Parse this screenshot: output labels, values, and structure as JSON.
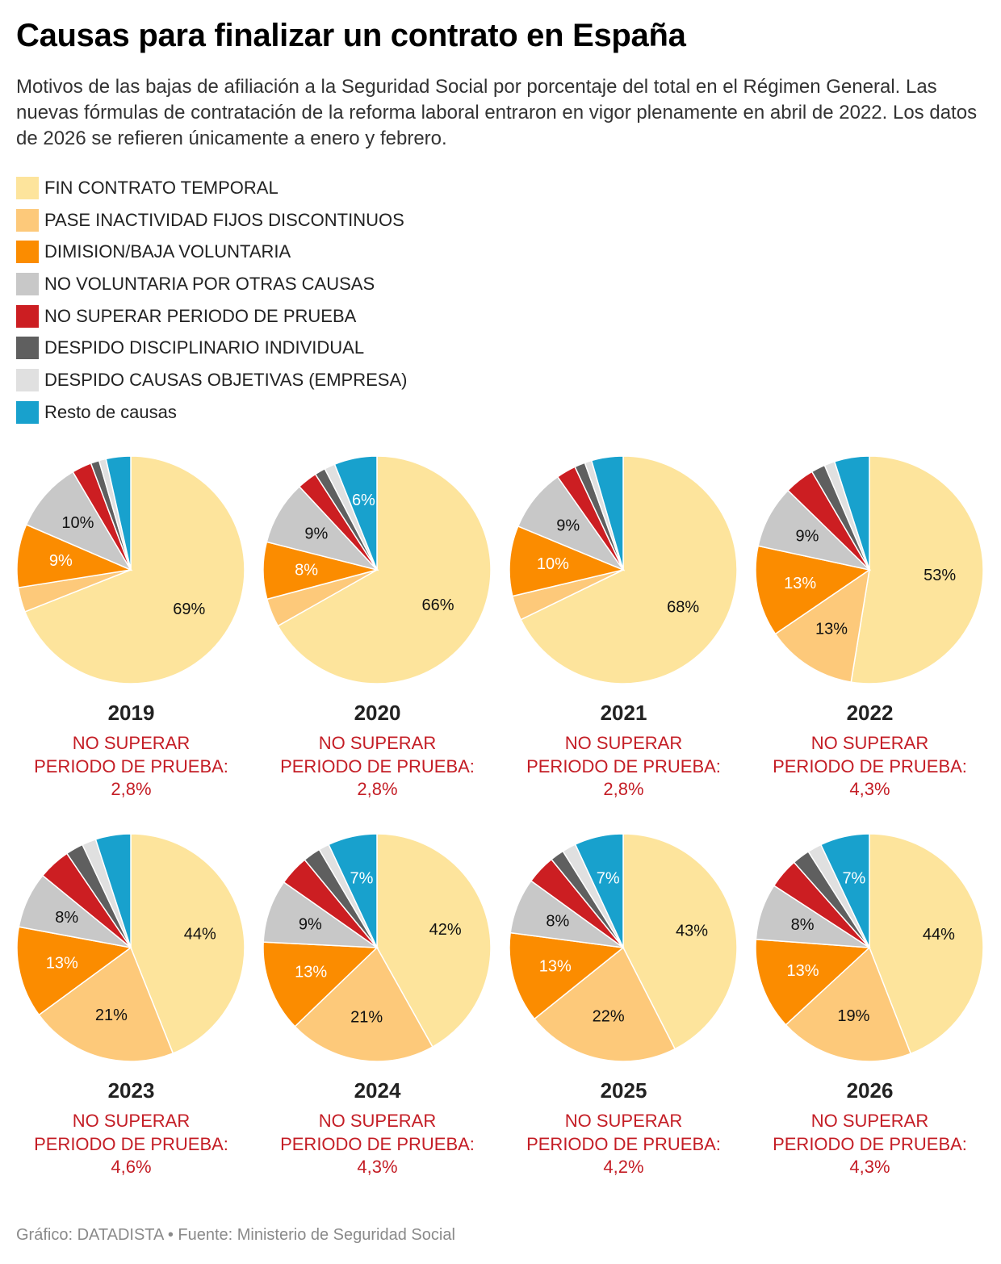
{
  "title": "Causas para finalizar un contrato en España",
  "subtitle": "Motivos de las bajas de afiliación a la Seguridad Social por porcentaje del total en el Régimen General. Las nuevas fórmulas de contratación de la reforma laboral entraron en vigor plenamente en abril de 2022. Los datos de 2026 se refieren únicamente a enero y febrero.",
  "legend": [
    {
      "label": "FIN CONTRATO TEMPORAL",
      "color": "#fde49c"
    },
    {
      "label": "PASE INACTIVIDAD FIJOS DISCONTINUOS",
      "color": "#fdc97a"
    },
    {
      "label": "DIMISION/BAJA VOLUNTARIA",
      "color": "#fb8c00"
    },
    {
      "label": "NO VOLUNTARIA POR OTRAS CAUSAS",
      "color": "#c8c8c8"
    },
    {
      "label": "NO SUPERAR PERIODO DE PRUEBA",
      "color": "#cc1e22"
    },
    {
      "label": "DESPIDO DISCIPLINARIO INDIVIDUAL",
      "color": "#5f5f5f"
    },
    {
      "label": "DESPIDO CAUSAS OBJETIVAS (EMPRESA)",
      "color": "#e0e0e0"
    },
    {
      "label": "Resto de causas",
      "color": "#18a1cd"
    }
  ],
  "note_lines": [
    "NO SUPERAR",
    "PERIODO DE PRUEBA:"
  ],
  "footer": "Gráfico: DATADISTA • Fuente: Ministerio de Seguridad Social",
  "chart_data": [
    {
      "type": "pie",
      "year": "2019",
      "values": [
        69,
        3.5,
        9,
        10,
        2.8,
        1.2,
        1,
        3.5
      ],
      "labels": [
        "69%",
        "",
        "9%",
        "10%",
        "",
        "",
        "",
        ""
      ],
      "note_value": "2,8%"
    },
    {
      "type": "pie",
      "year": "2020",
      "values": [
        66,
        4,
        8,
        9,
        2.8,
        1.5,
        1.5,
        6
      ],
      "labels": [
        "66%",
        "",
        "8%",
        "9%",
        "",
        "",
        "",
        "6%"
      ],
      "note_value": "2,8%"
    },
    {
      "type": "pie",
      "year": "2021",
      "values": [
        68,
        3.5,
        10,
        9,
        2.8,
        1.5,
        1,
        4.5
      ],
      "labels": [
        "68%",
        "",
        "10%",
        "9%",
        "",
        "",
        "",
        ""
      ],
      "note_value": "2,8%"
    },
    {
      "type": "pie",
      "year": "2022",
      "values": [
        53,
        13,
        13,
        9,
        4.3,
        2,
        1.5,
        5
      ],
      "labels": [
        "53%",
        "13%",
        "13%",
        "9%",
        "",
        "",
        "",
        ""
      ],
      "note_value": "4,3%"
    },
    {
      "type": "pie",
      "year": "2023",
      "values": [
        44,
        21,
        13,
        8,
        4.6,
        2.5,
        2,
        5
      ],
      "labels": [
        "44%",
        "21%",
        "13%",
        "8%",
        "",
        "",
        "",
        ""
      ],
      "note_value": "4,6%"
    },
    {
      "type": "pie",
      "year": "2024",
      "values": [
        42,
        21,
        13,
        9,
        4.3,
        2.5,
        1.5,
        7
      ],
      "labels": [
        "42%",
        "21%",
        "13%",
        "9%",
        "",
        "",
        "",
        "7%"
      ],
      "note_value": "4,3%"
    },
    {
      "type": "pie",
      "year": "2025",
      "values": [
        43,
        22,
        13,
        8,
        4.2,
        2,
        2,
        7
      ],
      "labels": [
        "43%",
        "22%",
        "13%",
        "8%",
        "",
        "",
        "",
        "7%"
      ],
      "note_value": "4,2%"
    },
    {
      "type": "pie",
      "year": "2026",
      "values": [
        44,
        19,
        13,
        8,
        4.3,
        2.5,
        2,
        7
      ],
      "labels": [
        "44%",
        "19%",
        "13%",
        "8%",
        "",
        "",
        "",
        "7%"
      ],
      "note_value": "4,3%"
    }
  ]
}
